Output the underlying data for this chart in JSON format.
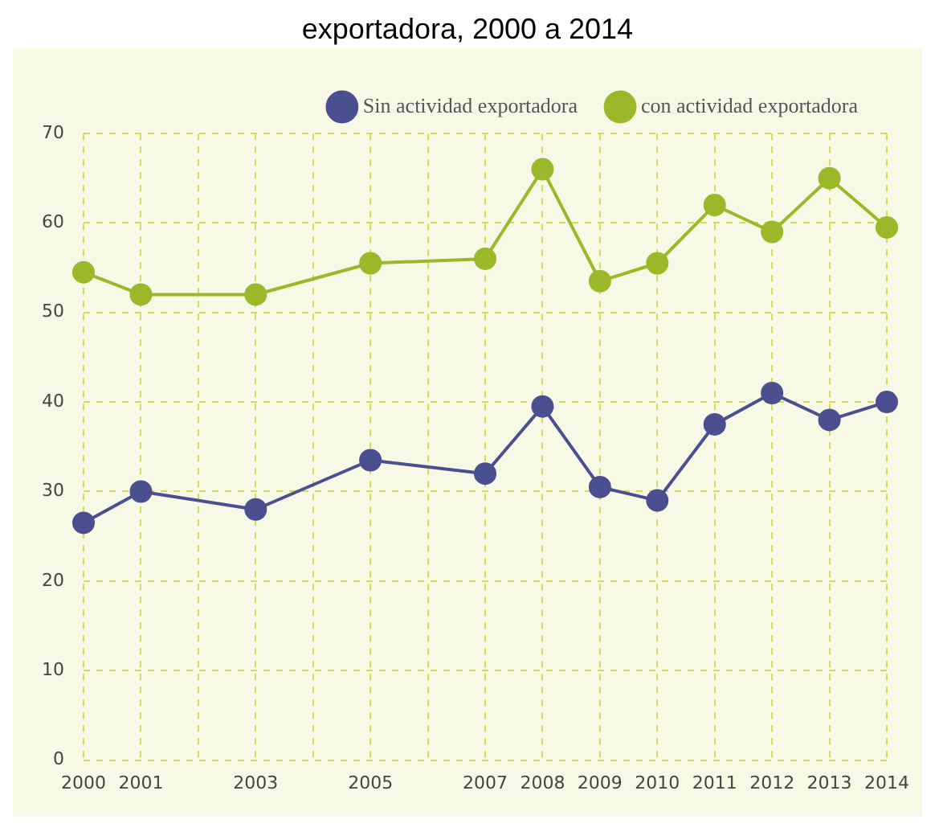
{
  "chart_data": {
    "type": "line",
    "title": "exportadora, 2000 a 2014",
    "categories": [
      "2000",
      "2001",
      null,
      "2003",
      null,
      "2005",
      null,
      "2007",
      "2008",
      "2009",
      "2010",
      "2011",
      "2012",
      "2013",
      "2014"
    ],
    "series": [
      {
        "name": "Sin actividad exportadora",
        "color": "#4a4f8f",
        "values": [
          26.5,
          30,
          null,
          28,
          null,
          33.5,
          null,
          32,
          39.5,
          30.5,
          29,
          37.5,
          41,
          38,
          40
        ]
      },
      {
        "name": "con actividad exportadora",
        "color": "#9bb82a",
        "values": [
          54.5,
          52,
          null,
          52,
          null,
          55.5,
          null,
          56,
          66,
          53.5,
          55.5,
          62,
          59,
          65,
          59.5
        ]
      }
    ],
    "ylim": [
      0,
      70
    ],
    "yticks": [
      0,
      10,
      20,
      30,
      40,
      50,
      60,
      70
    ],
    "grid": true,
    "legend": "top right",
    "marker": "circle",
    "line_style": "solid"
  }
}
